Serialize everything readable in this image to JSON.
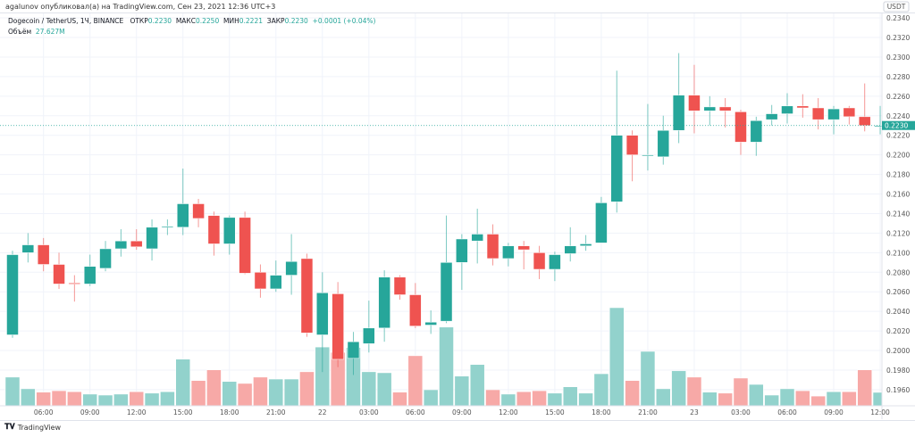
{
  "byline": "agalunov опубликовал(а) на TradingView.com, Сен 23, 2021 12:36 UTC+3",
  "legend": {
    "symbol": "Dogecoin / TetherUS, 1Ч, BINANCE",
    "open_label": "ОТКР",
    "open": "0.2230",
    "high_label": "МАКС",
    "high": "0.2250",
    "low_label": "МИН",
    "low": "0.2221",
    "close_label": "ЗАКР",
    "close": "0.2230",
    "change": "+0.0001 (+0.04%)",
    "volume_label": "Объём",
    "volume": "27.627M"
  },
  "currency": "USDT",
  "last_price_label": "0.2230",
  "footer": {
    "logo": "𝐓𝐕",
    "brand": "TradingView"
  },
  "colors": {
    "up": "#26a69a",
    "down": "#ef5350",
    "up_volume": "#92d2cc",
    "down_volume": "#f7a9a7",
    "grid": "#f0f3fa"
  },
  "chart_data": {
    "type": "candlestick",
    "interval": "1h",
    "ylim": [
      0.195,
      0.2345
    ],
    "y_ticks": [
      "0.1960",
      "0.1980",
      "0.2000",
      "0.2020",
      "0.2040",
      "0.2060",
      "0.2080",
      "0.2100",
      "0.2120",
      "0.2140",
      "0.2160",
      "0.2180",
      "0.2200",
      "0.2220",
      "0.2240",
      "0.2260",
      "0.2280",
      "0.2300",
      "0.2320",
      "0.2340"
    ],
    "x_ticks": [
      "06:00",
      "09:00",
      "12:00",
      "15:00",
      "18:00",
      "21:00",
      "22",
      "03:00",
      "06:00",
      "09:00",
      "12:00",
      "15:00",
      "18:00",
      "21:00",
      "23",
      "03:00",
      "06:00",
      "09:00",
      "12:00"
    ],
    "last_price": 0.223,
    "ohlc": [
      [
        0.2016,
        0.2102,
        0.2013,
        0.2098
      ],
      [
        0.21,
        0.212,
        0.209,
        0.2108
      ],
      [
        0.2108,
        0.2115,
        0.2081,
        0.2088
      ],
      [
        0.2088,
        0.21,
        0.2063,
        0.2068
      ],
      [
        0.2069,
        0.2077,
        0.205,
        0.2068
      ],
      [
        0.2068,
        0.2098,
        0.2066,
        0.2086
      ],
      [
        0.2084,
        0.2112,
        0.2081,
        0.2104
      ],
      [
        0.2104,
        0.2124,
        0.2096,
        0.2112
      ],
      [
        0.2112,
        0.2124,
        0.2103,
        0.2106
      ],
      [
        0.2104,
        0.2134,
        0.2092,
        0.2126
      ],
      [
        0.2126,
        0.2134,
        0.2118,
        0.2127
      ],
      [
        0.2126,
        0.2186,
        0.2118,
        0.215
      ],
      [
        0.215,
        0.2155,
        0.2126,
        0.2135
      ],
      [
        0.2138,
        0.2142,
        0.2097,
        0.2109
      ],
      [
        0.2109,
        0.2138,
        0.2098,
        0.2136
      ],
      [
        0.2136,
        0.2142,
        0.2078,
        0.2079
      ],
      [
        0.208,
        0.2088,
        0.2054,
        0.2063
      ],
      [
        0.2063,
        0.2092,
        0.206,
        0.2077
      ],
      [
        0.2077,
        0.2119,
        0.2057,
        0.2091
      ],
      [
        0.2094,
        0.2099,
        0.2014,
        0.2018
      ],
      [
        0.2016,
        0.208,
        0.1978,
        0.2059
      ],
      [
        0.2058,
        0.207,
        0.1983,
        0.1991
      ],
      [
        0.1992,
        0.2019,
        0.1975,
        0.2009
      ],
      [
        0.2007,
        0.2051,
        0.1998,
        0.2023
      ],
      [
        0.2023,
        0.2082,
        0.2009,
        0.2075
      ],
      [
        0.2075,
        0.2077,
        0.2052,
        0.2057
      ],
      [
        0.2057,
        0.2069,
        0.2023,
        0.2025
      ],
      [
        0.2026,
        0.2041,
        0.2017,
        0.2029
      ],
      [
        0.203,
        0.2138,
        0.2028,
        0.209
      ],
      [
        0.209,
        0.2119,
        0.2062,
        0.2114
      ],
      [
        0.2112,
        0.2145,
        0.2089,
        0.2119
      ],
      [
        0.2119,
        0.2129,
        0.2087,
        0.2094
      ],
      [
        0.2094,
        0.211,
        0.2086,
        0.2107
      ],
      [
        0.2107,
        0.2112,
        0.2083,
        0.2103
      ],
      [
        0.21,
        0.2107,
        0.2073,
        0.2083
      ],
      [
        0.2083,
        0.2101,
        0.2071,
        0.2098
      ],
      [
        0.2099,
        0.2126,
        0.2091,
        0.2107
      ],
      [
        0.2107,
        0.2118,
        0.2102,
        0.2109
      ],
      [
        0.211,
        0.2157,
        0.211,
        0.2151
      ],
      [
        0.2152,
        0.2286,
        0.2141,
        0.222
      ],
      [
        0.222,
        0.2225,
        0.2173,
        0.22
      ],
      [
        0.22,
        0.2252,
        0.2184,
        0.22
      ],
      [
        0.2198,
        0.224,
        0.219,
        0.2225
      ],
      [
        0.2225,
        0.2304,
        0.2212,
        0.2261
      ],
      [
        0.2261,
        0.2292,
        0.2222,
        0.2245
      ],
      [
        0.2245,
        0.226,
        0.223,
        0.2249
      ],
      [
        0.2249,
        0.2258,
        0.2228,
        0.2245
      ],
      [
        0.2244,
        0.2246,
        0.22,
        0.2213
      ],
      [
        0.2213,
        0.2239,
        0.2199,
        0.2235
      ],
      [
        0.2236,
        0.2251,
        0.223,
        0.2242
      ],
      [
        0.2242,
        0.2263,
        0.2232,
        0.225
      ],
      [
        0.225,
        0.2262,
        0.2238,
        0.2248
      ],
      [
        0.2248,
        0.2258,
        0.2226,
        0.2236
      ],
      [
        0.2236,
        0.225,
        0.2221,
        0.2247
      ],
      [
        0.2248,
        0.225,
        0.2231,
        0.2239
      ],
      [
        0.2239,
        0.2273,
        0.2224,
        0.223
      ],
      [
        0.223,
        0.225,
        0.2221,
        0.223
      ]
    ],
    "volume_millions": [
      59,
      35,
      28,
      31,
      29,
      24,
      22,
      24,
      29,
      26,
      29,
      96,
      52,
      74,
      50,
      46,
      59,
      55,
      55,
      70,
      121,
      110,
      120,
      70,
      68,
      28,
      103,
      33,
      162,
      61,
      85,
      33,
      24,
      29,
      31,
      26,
      39,
      26,
      66,
      202,
      52,
      112,
      35,
      72,
      59,
      28,
      26,
      57,
      44,
      22,
      35,
      31,
      20,
      29,
      29,
      74,
      27.6
    ]
  }
}
